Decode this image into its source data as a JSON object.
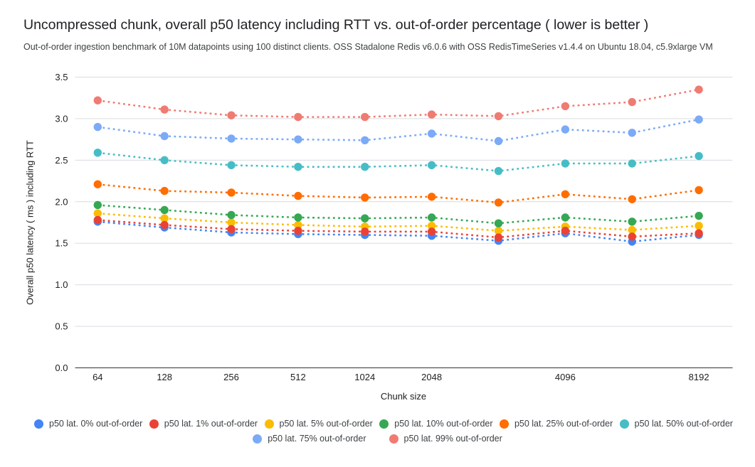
{
  "chart_data": {
    "type": "line",
    "line_style": "dotted",
    "marker": "circle",
    "grid": true,
    "legend_position": "bottom",
    "title": "Uncompressed chunk, overall p50 latency including RTT vs. out-of-order percentage ( lower is better )",
    "subtitle": "Out-of-order ingestion benchmark of 10M datapoints using 100 distinct clients. OSS Stadalone Redis v6.0.6 with OSS RedisTimeSeries v1.4.4 on Ubuntu 18.04, c5.9xlarge VM",
    "xlabel": "Chunk size",
    "ylabel": "Overall p50 latency ( ms ) including RTT",
    "ylim": [
      0.0,
      3.5
    ],
    "yticks": [
      "0.0",
      "0.5",
      "1.0",
      "1.5",
      "2.0",
      "2.5",
      "3.0",
      "3.5"
    ],
    "categories": [
      "64",
      "128",
      "256",
      "512",
      "1024",
      "2048",
      "",
      "4096",
      "",
      "8192"
    ],
    "series": [
      {
        "name": "p50 lat. 0% out-of-order",
        "color": "#4285F4",
        "values": [
          1.76,
          1.69,
          1.63,
          1.61,
          1.6,
          1.59,
          1.53,
          1.62,
          1.52,
          1.6
        ]
      },
      {
        "name": "p50 lat. 1% out-of-order",
        "color": "#EA4335",
        "values": [
          1.78,
          1.72,
          1.67,
          1.65,
          1.64,
          1.64,
          1.57,
          1.65,
          1.58,
          1.62
        ]
      },
      {
        "name": "p50 lat. 5% out-of-order",
        "color": "#FBBC04",
        "values": [
          1.86,
          1.8,
          1.75,
          1.72,
          1.7,
          1.71,
          1.65,
          1.7,
          1.66,
          1.71
        ]
      },
      {
        "name": "p50 lat. 10% out-of-order",
        "color": "#34A853",
        "values": [
          1.96,
          1.9,
          1.84,
          1.81,
          1.8,
          1.81,
          1.74,
          1.81,
          1.76,
          1.83
        ]
      },
      {
        "name": "p50 lat. 25% out-of-order",
        "color": "#FF6D01",
        "values": [
          2.21,
          2.13,
          2.11,
          2.07,
          2.05,
          2.06,
          1.99,
          2.09,
          2.03,
          2.14
        ]
      },
      {
        "name": "p50 lat. 50% out-of-order",
        "color": "#46BDC6",
        "values": [
          2.59,
          2.5,
          2.44,
          2.42,
          2.42,
          2.44,
          2.37,
          2.46,
          2.46,
          2.55
        ]
      },
      {
        "name": "p50 lat. 75% out-of-order",
        "color": "#7BAAF7",
        "values": [
          2.9,
          2.79,
          2.76,
          2.75,
          2.74,
          2.82,
          2.73,
          2.87,
          2.83,
          2.99
        ]
      },
      {
        "name": "p50 lat. 99% out-of-order",
        "color": "#F07B72",
        "values": [
          3.22,
          3.11,
          3.04,
          3.02,
          3.02,
          3.05,
          3.03,
          3.15,
          3.2,
          3.35
        ]
      }
    ]
  }
}
